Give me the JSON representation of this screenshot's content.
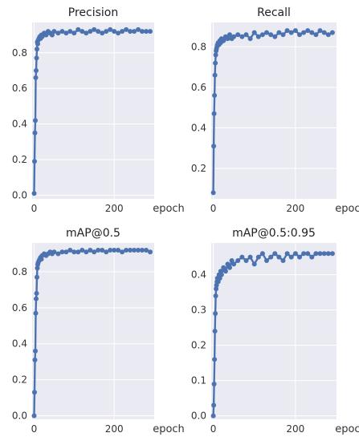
{
  "chart_data": [
    {
      "type": "line",
      "title": "Precision",
      "xlabel": "epoch",
      "ylabel": "",
      "xlim": [
        -5,
        300
      ],
      "ylim": [
        -0.02,
        0.97
      ],
      "xticks": [
        0,
        200
      ],
      "yticks": [
        0.0,
        0.2,
        0.4,
        0.6,
        0.8
      ],
      "grid": true,
      "x": [
        0,
        1,
        2,
        3,
        4,
        5,
        6,
        7,
        8,
        9,
        10,
        12,
        14,
        16,
        18,
        20,
        25,
        30,
        35,
        40,
        45,
        50,
        60,
        70,
        80,
        90,
        100,
        110,
        120,
        130,
        140,
        150,
        160,
        170,
        180,
        190,
        200,
        210,
        220,
        230,
        240,
        250,
        260,
        270,
        280,
        290
      ],
      "y": [
        0.01,
        0.19,
        0.35,
        0.42,
        0.66,
        0.7,
        0.77,
        0.82,
        0.86,
        0.85,
        0.87,
        0.88,
        0.89,
        0.88,
        0.9,
        0.89,
        0.91,
        0.9,
        0.92,
        0.91,
        0.9,
        0.92,
        0.91,
        0.92,
        0.91,
        0.92,
        0.91,
        0.93,
        0.92,
        0.91,
        0.92,
        0.93,
        0.92,
        0.91,
        0.92,
        0.93,
        0.92,
        0.91,
        0.92,
        0.93,
        0.92,
        0.92,
        0.93,
        0.92,
        0.92,
        0.92
      ]
    },
    {
      "type": "line",
      "title": "Recall",
      "xlabel": "epoch",
      "ylabel": "",
      "xlim": [
        -5,
        300
      ],
      "ylim": [
        0.05,
        0.92
      ],
      "xticks": [
        0,
        200
      ],
      "yticks": [
        0.2,
        0.4,
        0.6,
        0.8
      ],
      "grid": true,
      "x": [
        0,
        1,
        2,
        3,
        4,
        5,
        6,
        7,
        8,
        9,
        10,
        12,
        14,
        16,
        18,
        20,
        25,
        30,
        35,
        40,
        45,
        50,
        60,
        70,
        80,
        90,
        100,
        110,
        120,
        130,
        140,
        150,
        160,
        170,
        180,
        190,
        200,
        210,
        220,
        230,
        240,
        250,
        260,
        270,
        280,
        290
      ],
      "y": [
        0.08,
        0.31,
        0.47,
        0.56,
        0.66,
        0.72,
        0.76,
        0.78,
        0.79,
        0.8,
        0.81,
        0.82,
        0.81,
        0.83,
        0.82,
        0.84,
        0.83,
        0.85,
        0.84,
        0.86,
        0.84,
        0.85,
        0.86,
        0.85,
        0.86,
        0.84,
        0.87,
        0.85,
        0.86,
        0.87,
        0.86,
        0.85,
        0.87,
        0.86,
        0.88,
        0.87,
        0.88,
        0.86,
        0.87,
        0.88,
        0.87,
        0.86,
        0.88,
        0.87,
        0.86,
        0.87
      ]
    },
    {
      "type": "line",
      "title": "mAP@0.5",
      "xlabel": "epoch",
      "ylabel": "",
      "xlim": [
        -5,
        300
      ],
      "ylim": [
        -0.02,
        0.96
      ],
      "xticks": [
        0,
        200
      ],
      "yticks": [
        0.0,
        0.2,
        0.4,
        0.6,
        0.8
      ],
      "grid": true,
      "x": [
        0,
        1,
        2,
        3,
        4,
        5,
        6,
        7,
        8,
        9,
        10,
        12,
        14,
        16,
        18,
        20,
        25,
        30,
        35,
        40,
        45,
        50,
        60,
        70,
        80,
        90,
        100,
        110,
        120,
        130,
        140,
        150,
        160,
        170,
        180,
        190,
        200,
        210,
        220,
        230,
        240,
        250,
        260,
        270,
        280,
        290
      ],
      "y": [
        0.0,
        0.13,
        0.31,
        0.36,
        0.57,
        0.65,
        0.68,
        0.77,
        0.82,
        0.84,
        0.85,
        0.86,
        0.87,
        0.88,
        0.87,
        0.89,
        0.9,
        0.89,
        0.9,
        0.91,
        0.9,
        0.91,
        0.9,
        0.91,
        0.91,
        0.92,
        0.91,
        0.91,
        0.92,
        0.91,
        0.92,
        0.91,
        0.92,
        0.92,
        0.91,
        0.92,
        0.92,
        0.92,
        0.91,
        0.92,
        0.92,
        0.92,
        0.92,
        0.92,
        0.92,
        0.91
      ]
    },
    {
      "type": "line",
      "title": "mAP@0.5:0.95",
      "xlabel": "epoch",
      "ylabel": "",
      "xlim": [
        -5,
        300
      ],
      "ylim": [
        -0.01,
        0.49
      ],
      "xticks": [
        0,
        200
      ],
      "yticks": [
        0.0,
        0.1,
        0.2,
        0.3,
        0.4
      ],
      "grid": true,
      "x": [
        0,
        1,
        2,
        3,
        4,
        5,
        6,
        7,
        8,
        9,
        10,
        12,
        14,
        16,
        18,
        20,
        25,
        30,
        35,
        40,
        45,
        50,
        60,
        70,
        80,
        90,
        100,
        110,
        120,
        130,
        140,
        150,
        160,
        170,
        180,
        190,
        200,
        210,
        220,
        230,
        240,
        250,
        260,
        270,
        280,
        290
      ],
      "y": [
        0.0,
        0.03,
        0.09,
        0.16,
        0.24,
        0.29,
        0.34,
        0.36,
        0.37,
        0.38,
        0.39,
        0.38,
        0.4,
        0.39,
        0.41,
        0.4,
        0.42,
        0.41,
        0.43,
        0.42,
        0.44,
        0.43,
        0.44,
        0.45,
        0.44,
        0.45,
        0.43,
        0.45,
        0.46,
        0.44,
        0.45,
        0.46,
        0.45,
        0.44,
        0.46,
        0.45,
        0.46,
        0.45,
        0.46,
        0.46,
        0.45,
        0.46,
        0.46,
        0.46,
        0.46,
        0.46
      ]
    }
  ]
}
